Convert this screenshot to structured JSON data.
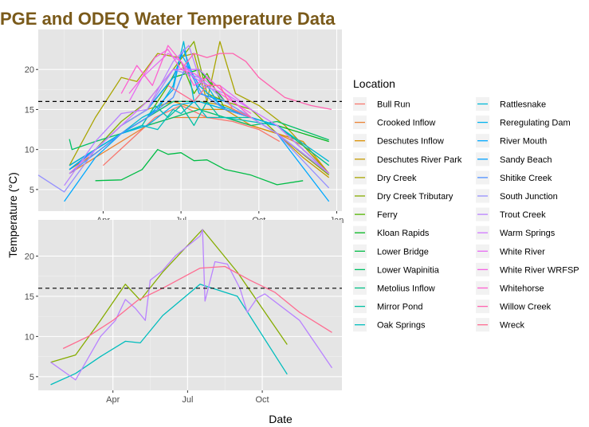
{
  "chart_data": {
    "title": "PGE and ODEQ Water Temperature Data",
    "title_color": "#7a5a1a",
    "xlabel": "Date",
    "ylabel": "Temperature (°C)",
    "legend_title": "Location",
    "legend_position": "right",
    "grid": true,
    "background": "#e5e5e5",
    "threshold": 16,
    "panels": [
      {
        "type": "line",
        "x_ticks": [
          {
            "m": 3.5,
            "label": "Apr"
          },
          {
            "m": 6.5,
            "label": "Jul"
          },
          {
            "m": 9.5,
            "label": "Oct"
          },
          {
            "m": 12.5,
            "label": "Jan"
          }
        ],
        "xlim": [
          1.0,
          12.7
        ],
        "y_ticks": [
          5,
          10,
          15,
          20
        ],
        "ylim": [
          2.3,
          25
        ],
        "series": [
          {
            "name": "Bull Run",
            "color": "#F8766D",
            "x": [
              3.5,
              4.5,
              5.5,
              6.5,
              7.5,
              8.5,
              9.5,
              10.3
            ],
            "y": [
              8,
              11,
              14,
              15.5,
              14,
              13.5,
              12.5,
              11
            ]
          },
          {
            "name": "Crooked Inflow",
            "color": "#EB8335",
            "x": [
              2.2,
              3.2,
              4.2,
              5.2,
              6.2,
              7.2,
              8.2,
              9.2,
              10.2,
              11.2,
              12.2
            ],
            "y": [
              7,
              9,
              11,
              13,
              14,
              14,
              14,
              13,
              12,
              10.5,
              7
            ]
          },
          {
            "name": "Deschutes Inflow",
            "color": "#DA8F00",
            "x": [
              2.2,
              3.2,
              4.2,
              5.2,
              6.2,
              7.2,
              8.2,
              9.2,
              10.2,
              11.2,
              12.2
            ],
            "y": [
              7.5,
              9.5,
              12,
              14,
              16,
              15,
              15,
              13,
              12,
              11,
              7
            ]
          },
          {
            "name": "Deschutes River Park",
            "color": "#C49A00",
            "x": [
              2.2,
              3.2,
              4.2,
              5.2,
              6.2,
              7.2,
              8.2,
              9.2,
              10.2,
              11.2,
              12.2
            ],
            "y": [
              8,
              10,
              13,
              15,
              16,
              16,
              15.5,
              14,
              12,
              9,
              6.5
            ]
          },
          {
            "name": "Dry Creek",
            "color": "#A9A400",
            "x": [
              2.2,
              3.2,
              4.2,
              4.8,
              5.6,
              6.4,
              7.0,
              7.5,
              8.0,
              8.6,
              9.5,
              10.5,
              12.2
            ],
            "y": [
              8,
              14,
              19,
              18.5,
              22,
              21.5,
              22,
              16,
              23.5,
              17,
              15.5,
              13,
              7
            ]
          },
          {
            "name": "Dry Creek Tributary",
            "color": "#86AC00",
            "x": [
              2.2,
              3.2,
              4.2,
              5.2,
              6.2,
              7.0,
              7.5,
              8.2,
              9.2,
              10.2,
              12.2
            ],
            "y": [
              7,
              10,
              13.5,
              16,
              20,
              23.5,
              17,
              16,
              15,
              12,
              6.8
            ]
          },
          {
            "name": "Ferry",
            "color": "#53B400",
            "x": [
              2.2,
              3.2,
              4.2,
              5.2,
              6.0,
              6.5,
              7.0,
              7.5,
              8.2,
              9.2,
              10.2,
              12.2
            ],
            "y": [
              8,
              10,
              12,
              14,
              18,
              21,
              17,
              19.5,
              15,
              14,
              13,
              7
            ]
          },
          {
            "name": "Kloan Rapids",
            "color": "#00B81F",
            "x": [
              2.2,
              3.2,
              4.2,
              5.2,
              6.2,
              7.2,
              8.2,
              9.2,
              10.2,
              12.2
            ],
            "y": [
              7.5,
              10,
              13,
              15,
              19,
              20,
              16,
              14,
              13,
              11
            ]
          },
          {
            "name": "Lower Bridge",
            "color": "#00BC45",
            "x": [
              3.2,
              4.2,
              5.0,
              5.6,
              6.0,
              6.5,
              7.0,
              7.5,
              8.2,
              9.2,
              10.2,
              11.2
            ],
            "y": [
              6.1,
              6.2,
              7.5,
              10,
              9.4,
              9.6,
              8.6,
              8.7,
              7.5,
              6.8,
              5.6,
              6.1
            ]
          },
          {
            "name": "Lower Wapinitia",
            "color": "#00BF66",
            "x": [
              2.2,
              2.3,
              3.2,
              4.2,
              5.2,
              6.2,
              7.2,
              8.2,
              9.2,
              10.2,
              12.2
            ],
            "y": [
              11.3,
              10,
              11,
              12,
              13,
              14,
              15,
              14,
              13,
              13.5,
              11.2
            ]
          },
          {
            "name": "Metolius Inflow",
            "color": "#00C085",
            "x": [
              2.2,
              3.2,
              4.2,
              5.2,
              6.2,
              7.2,
              8.2,
              9.2,
              10.2,
              12.2
            ],
            "y": [
              8,
              10,
              12,
              14,
              16,
              16,
              15,
              14,
              13,
              8
            ]
          },
          {
            "name": "Mirror Pond",
            "color": "#00C0A2",
            "x": [
              2.2,
              3.2,
              4.2,
              5.0,
              5.5,
              6.0,
              6.5,
              7.0,
              7.5,
              8.0,
              9.2,
              10.2,
              12.2
            ],
            "y": [
              7.5,
              10,
              12,
              13,
              15.5,
              14,
              15.5,
              13,
              16,
              14,
              14,
              13,
              7
            ]
          },
          {
            "name": "Oak Springs",
            "color": "#00BDBD",
            "x": [
              3.2,
              4.2,
              5.0,
              5.6,
              6.2,
              6.5,
              7.0,
              7.5,
              8.2,
              9.2,
              10.2
            ],
            "y": [
              10,
              12,
              13,
              12.5,
              15,
              14.5,
              16,
              14,
              14,
              13.5,
              13
            ]
          },
          {
            "name": "Rattlesnake",
            "color": "#00B8D7",
            "x": [
              2.2,
              3.2,
              4.2,
              5.0,
              5.6,
              6.2,
              6.6,
              7.0,
              7.5,
              8.0,
              9.2,
              10.2,
              12.2
            ],
            "y": [
              7.5,
              10,
              12,
              14,
              15,
              18,
              23.5,
              16,
              18,
              15.5,
              14,
              13,
              8.5
            ]
          },
          {
            "name": "Reregulating Dam",
            "color": "#00B2EE",
            "x": [
              2.2,
              3.2,
              4.2,
              5.2,
              6.2,
              7.2,
              8.2,
              9.2,
              10.2,
              12.2
            ],
            "y": [
              8,
              10,
              12,
              13,
              15.5,
              16,
              15,
              14,
              13,
              7
            ]
          },
          {
            "name": "River Mouth",
            "color": "#00A8FF",
            "x": [
              2.0,
              3.2,
              4.2,
              5.2,
              6.2,
              6.5,
              7.2,
              8.2,
              9.2,
              10.2,
              12.2
            ],
            "y": [
              3.5,
              9,
              12,
              14,
              17.5,
              22,
              18,
              15,
              14,
              12,
              3.5
            ]
          },
          {
            "name": "Sandy Beach",
            "color": "#00A0FF",
            "x": [
              2.2,
              3.2,
              4.2,
              5.2,
              6.2,
              6.6,
              7.2,
              8.2,
              9.2,
              10.2,
              12.2
            ],
            "y": [
              7.5,
              10,
              13,
              15,
              19,
              22.5,
              17,
              16,
              14,
              12,
              7
            ]
          },
          {
            "name": "Shitike Creek",
            "color": "#4F8FFF",
            "x": [
              2.2,
              3.2,
              4.2,
              5.2,
              6.2,
              6.7,
              7.3,
              8.2,
              9.2,
              10.2,
              12.2
            ],
            "y": [
              7,
              9.5,
              12,
              14,
              16.5,
              20.5,
              17,
              15,
              14,
              12,
              7
            ]
          },
          {
            "name": "South Junction",
            "color": "#9590FF",
            "x": [
              1.0,
              2.0,
              3.2,
              4.2,
              5.2,
              6.2,
              7.2,
              8.2,
              9.2,
              10.2,
              12.2
            ],
            "y": [
              6.8,
              4.7,
              10,
              13,
              15,
              20,
              19,
              16,
              14,
              12,
              5.2
            ]
          },
          {
            "name": "Trout Creek",
            "color": "#B983FF",
            "x": [
              2.0,
              3.2,
              4.2,
              5.2,
              6.2,
              6.8,
              7.3,
              8.2,
              9.2,
              10.2,
              12.2
            ],
            "y": [
              5.5,
              11,
              14.5,
              15,
              21,
              23,
              18,
              17,
              14,
              12,
              7
            ]
          },
          {
            "name": "Warm Springs",
            "color": "#D177FF",
            "x": [
              2.2,
              3.2,
              4.2,
              5.2,
              6.2,
              7.2,
              8.2,
              9.2,
              10.2,
              12.2
            ],
            "y": [
              7,
              10,
              13,
              16,
              20,
              20,
              17,
              15,
              13,
              7
            ]
          },
          {
            "name": "White River",
            "color": "#E76BF3",
            "x": [
              4.5,
              5.0,
              5.5,
              6.0,
              6.5,
              7.0,
              7.5,
              8.0,
              9.2
            ],
            "y": [
              16,
              19,
              20.5,
              22,
              21,
              19,
              18,
              18,
              15
            ]
          },
          {
            "name": "White River WRFSP",
            "color": "#F564E3",
            "x": [
              4.5,
              5.0,
              5.5,
              6.0,
              6.5,
              7.0,
              7.5,
              8.0,
              9.2
            ],
            "y": [
              17,
              19,
              21.5,
              22.5,
              20,
              19.5,
              18.5,
              17,
              14.5
            ]
          },
          {
            "name": "Whitehorse",
            "color": "#FD61D1",
            "x": [
              4.2,
              4.8,
              5.4,
              6.0,
              6.5,
              7.0,
              7.5,
              8.2,
              9.2
            ],
            "y": [
              17,
              20.5,
              18,
              23,
              21,
              18,
              19,
              17,
              14
            ]
          },
          {
            "name": "Willow Creek",
            "color": "#FF64B0",
            "x": [
              6.5,
              7.0,
              7.5,
              8.0,
              8.5,
              9.0,
              9.5,
              10.5,
              11.5,
              12.3
            ],
            "y": [
              20,
              22,
              21.5,
              22,
              22,
              21,
              19,
              16.5,
              15.5,
              15
            ]
          },
          {
            "name": "Wreck",
            "color": "#FF6C91",
            "x": [
              6.0,
              6.5,
              7.0,
              7.5,
              8.0,
              8.5,
              9.2
            ],
            "y": [
              18,
              17,
              16,
              18,
              18,
              15,
              14
            ]
          }
        ]
      },
      {
        "type": "line",
        "x_ticks": [
          {
            "m": 3.5,
            "label": "Apr"
          },
          {
            "m": 6.5,
            "label": "Jul"
          },
          {
            "m": 9.5,
            "label": "Oct"
          }
        ],
        "xlim": [
          0.5,
          12.7
        ],
        "y_ticks": [
          5,
          10,
          15,
          20
        ],
        "ylim": [
          3.3,
          24.5
        ],
        "series": [
          {
            "name": "Dry Creek Tributary",
            "color": "#86AC00",
            "x": [
              1.0,
              2.0,
              3.0,
              4.0,
              4.6,
              5.5,
              7.1,
              8.5,
              10.5
            ],
            "y": [
              6.8,
              7.7,
              12,
              16.5,
              14.5,
              18,
              23.3,
              18,
              9
            ]
          },
          {
            "name": "Oak Springs",
            "color": "#00BDBD",
            "x": [
              1.0,
              2.0,
              3.0,
              4.0,
              4.6,
              5.5,
              7.0,
              8.5,
              10.5
            ],
            "y": [
              4,
              5.4,
              7.5,
              9.4,
              9.2,
              12.6,
              16.5,
              15,
              5.3
            ]
          },
          {
            "name": "Trout Creek",
            "color": "#B983FF",
            "x": [
              1.0,
              2.0,
              3.0,
              3.6,
              4.0,
              4.4,
              4.8,
              5.0,
              5.5,
              6.0,
              7.0,
              7.1,
              7.2,
              7.6,
              8.1,
              8.6,
              8.9,
              9.3,
              9.6,
              11.0,
              12.3
            ],
            "y": [
              6.8,
              4.6,
              10,
              12,
              14.6,
              13.5,
              12,
              17,
              18.2,
              20,
              22.5,
              23.3,
              14.4,
              19.3,
              19,
              16,
              13,
              14.8,
              15.3,
              12,
              6.1
            ]
          },
          {
            "name": "Wreck",
            "color": "#FF6C91",
            "x": [
              1.5,
              2.5,
              3.5,
              4.5,
              5.5,
              7.0,
              8.0,
              9.0,
              10.0,
              11.0,
              12.3
            ],
            "y": [
              8.5,
              10,
              12,
              14.5,
              16,
              18.5,
              18.7,
              17,
              15.5,
              13,
              10.5
            ]
          }
        ]
      }
    ]
  }
}
